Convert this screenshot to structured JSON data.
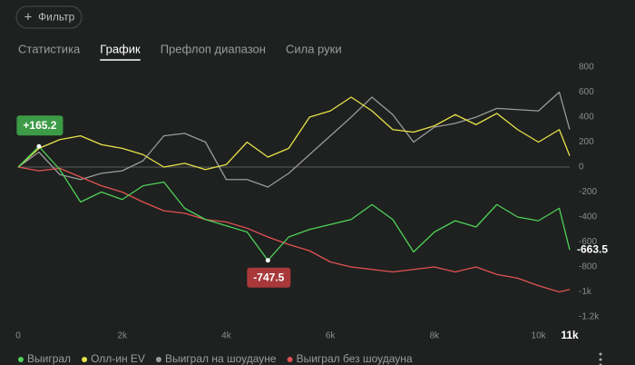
{
  "ui": {
    "filter_button": "Фильтр",
    "tabs": [
      "Статистика",
      "График",
      "Префлоп диапазон",
      "Сила руки"
    ],
    "active_tab": 1
  },
  "chart_data": {
    "type": "line",
    "x": [
      0,
      400,
      800,
      1200,
      1600,
      2000,
      2400,
      2800,
      3200,
      3600,
      4000,
      4400,
      4800,
      5200,
      5600,
      6000,
      6400,
      6800,
      7200,
      7600,
      8000,
      8400,
      8800,
      9200,
      9600,
      10000,
      10400,
      10600
    ],
    "series": [
      {
        "name": "Выиграл",
        "color": "#4fd15a",
        "values": [
          0,
          165.2,
          -20,
          -280,
          -200,
          -260,
          -150,
          -120,
          -330,
          -420,
          -470,
          -520,
          -747.5,
          -560,
          -500,
          -460,
          -420,
          -300,
          -420,
          -680,
          -520,
          -430,
          -480,
          -300,
          -400,
          -430,
          -330,
          -663.5
        ]
      },
      {
        "name": "Олл-ин EV",
        "color": "#e8e24a",
        "values": [
          0,
          150,
          220,
          250,
          180,
          150,
          100,
          0,
          30,
          -20,
          20,
          200,
          80,
          150,
          400,
          450,
          560,
          450,
          300,
          280,
          330,
          420,
          340,
          430,
          300,
          200,
          300,
          90
        ]
      },
      {
        "name": "Выиграл на шоудауне",
        "color": "#9a9a9a",
        "values": [
          0,
          120,
          -60,
          -100,
          -50,
          -30,
          50,
          250,
          270,
          200,
          -100,
          -100,
          -160,
          -50,
          100,
          250,
          400,
          560,
          420,
          200,
          320,
          350,
          400,
          470,
          460,
          450,
          600,
          300
        ]
      },
      {
        "name": "Выиграл без шоудауна",
        "color": "#e05252",
        "values": [
          0,
          -30,
          -10,
          -80,
          -150,
          -200,
          -280,
          -350,
          -370,
          -420,
          -440,
          -490,
          -560,
          -620,
          -670,
          -760,
          -800,
          -820,
          -840,
          -820,
          -800,
          -840,
          -800,
          -860,
          -890,
          -950,
          -1000,
          -980
        ]
      }
    ],
    "xlim": [
      0,
      10600
    ],
    "xticks": [
      0,
      {
        "value": 2000,
        "label": "2k"
      },
      {
        "value": 4000,
        "label": "4k"
      },
      {
        "value": 6000,
        "label": "6k"
      },
      {
        "value": 8000,
        "label": "8k"
      },
      {
        "value": 10000,
        "label": "10k"
      },
      {
        "value": 10600,
        "label": "11k"
      }
    ],
    "ylim": [
      -1200,
      800
    ],
    "yticks": [
      800,
      600,
      400,
      200,
      0,
      -200,
      -400,
      -600,
      -800,
      {
        "value": -1000,
        "label": "-1k"
      },
      {
        "value": -1200,
        "label": "-1.2k"
      }
    ],
    "annotations": [
      {
        "series": 0,
        "x": 400,
        "value": 165.2,
        "label": "+165.2",
        "color": "#3d9a46",
        "position": "above"
      },
      {
        "series": 0,
        "x": 4800,
        "value": -747.5,
        "label": "-747.5",
        "color": "#a8383a",
        "position": "below"
      },
      {
        "series": 0,
        "x": 10600,
        "value": -663.5,
        "label": "-663.5",
        "position": "right"
      }
    ]
  }
}
